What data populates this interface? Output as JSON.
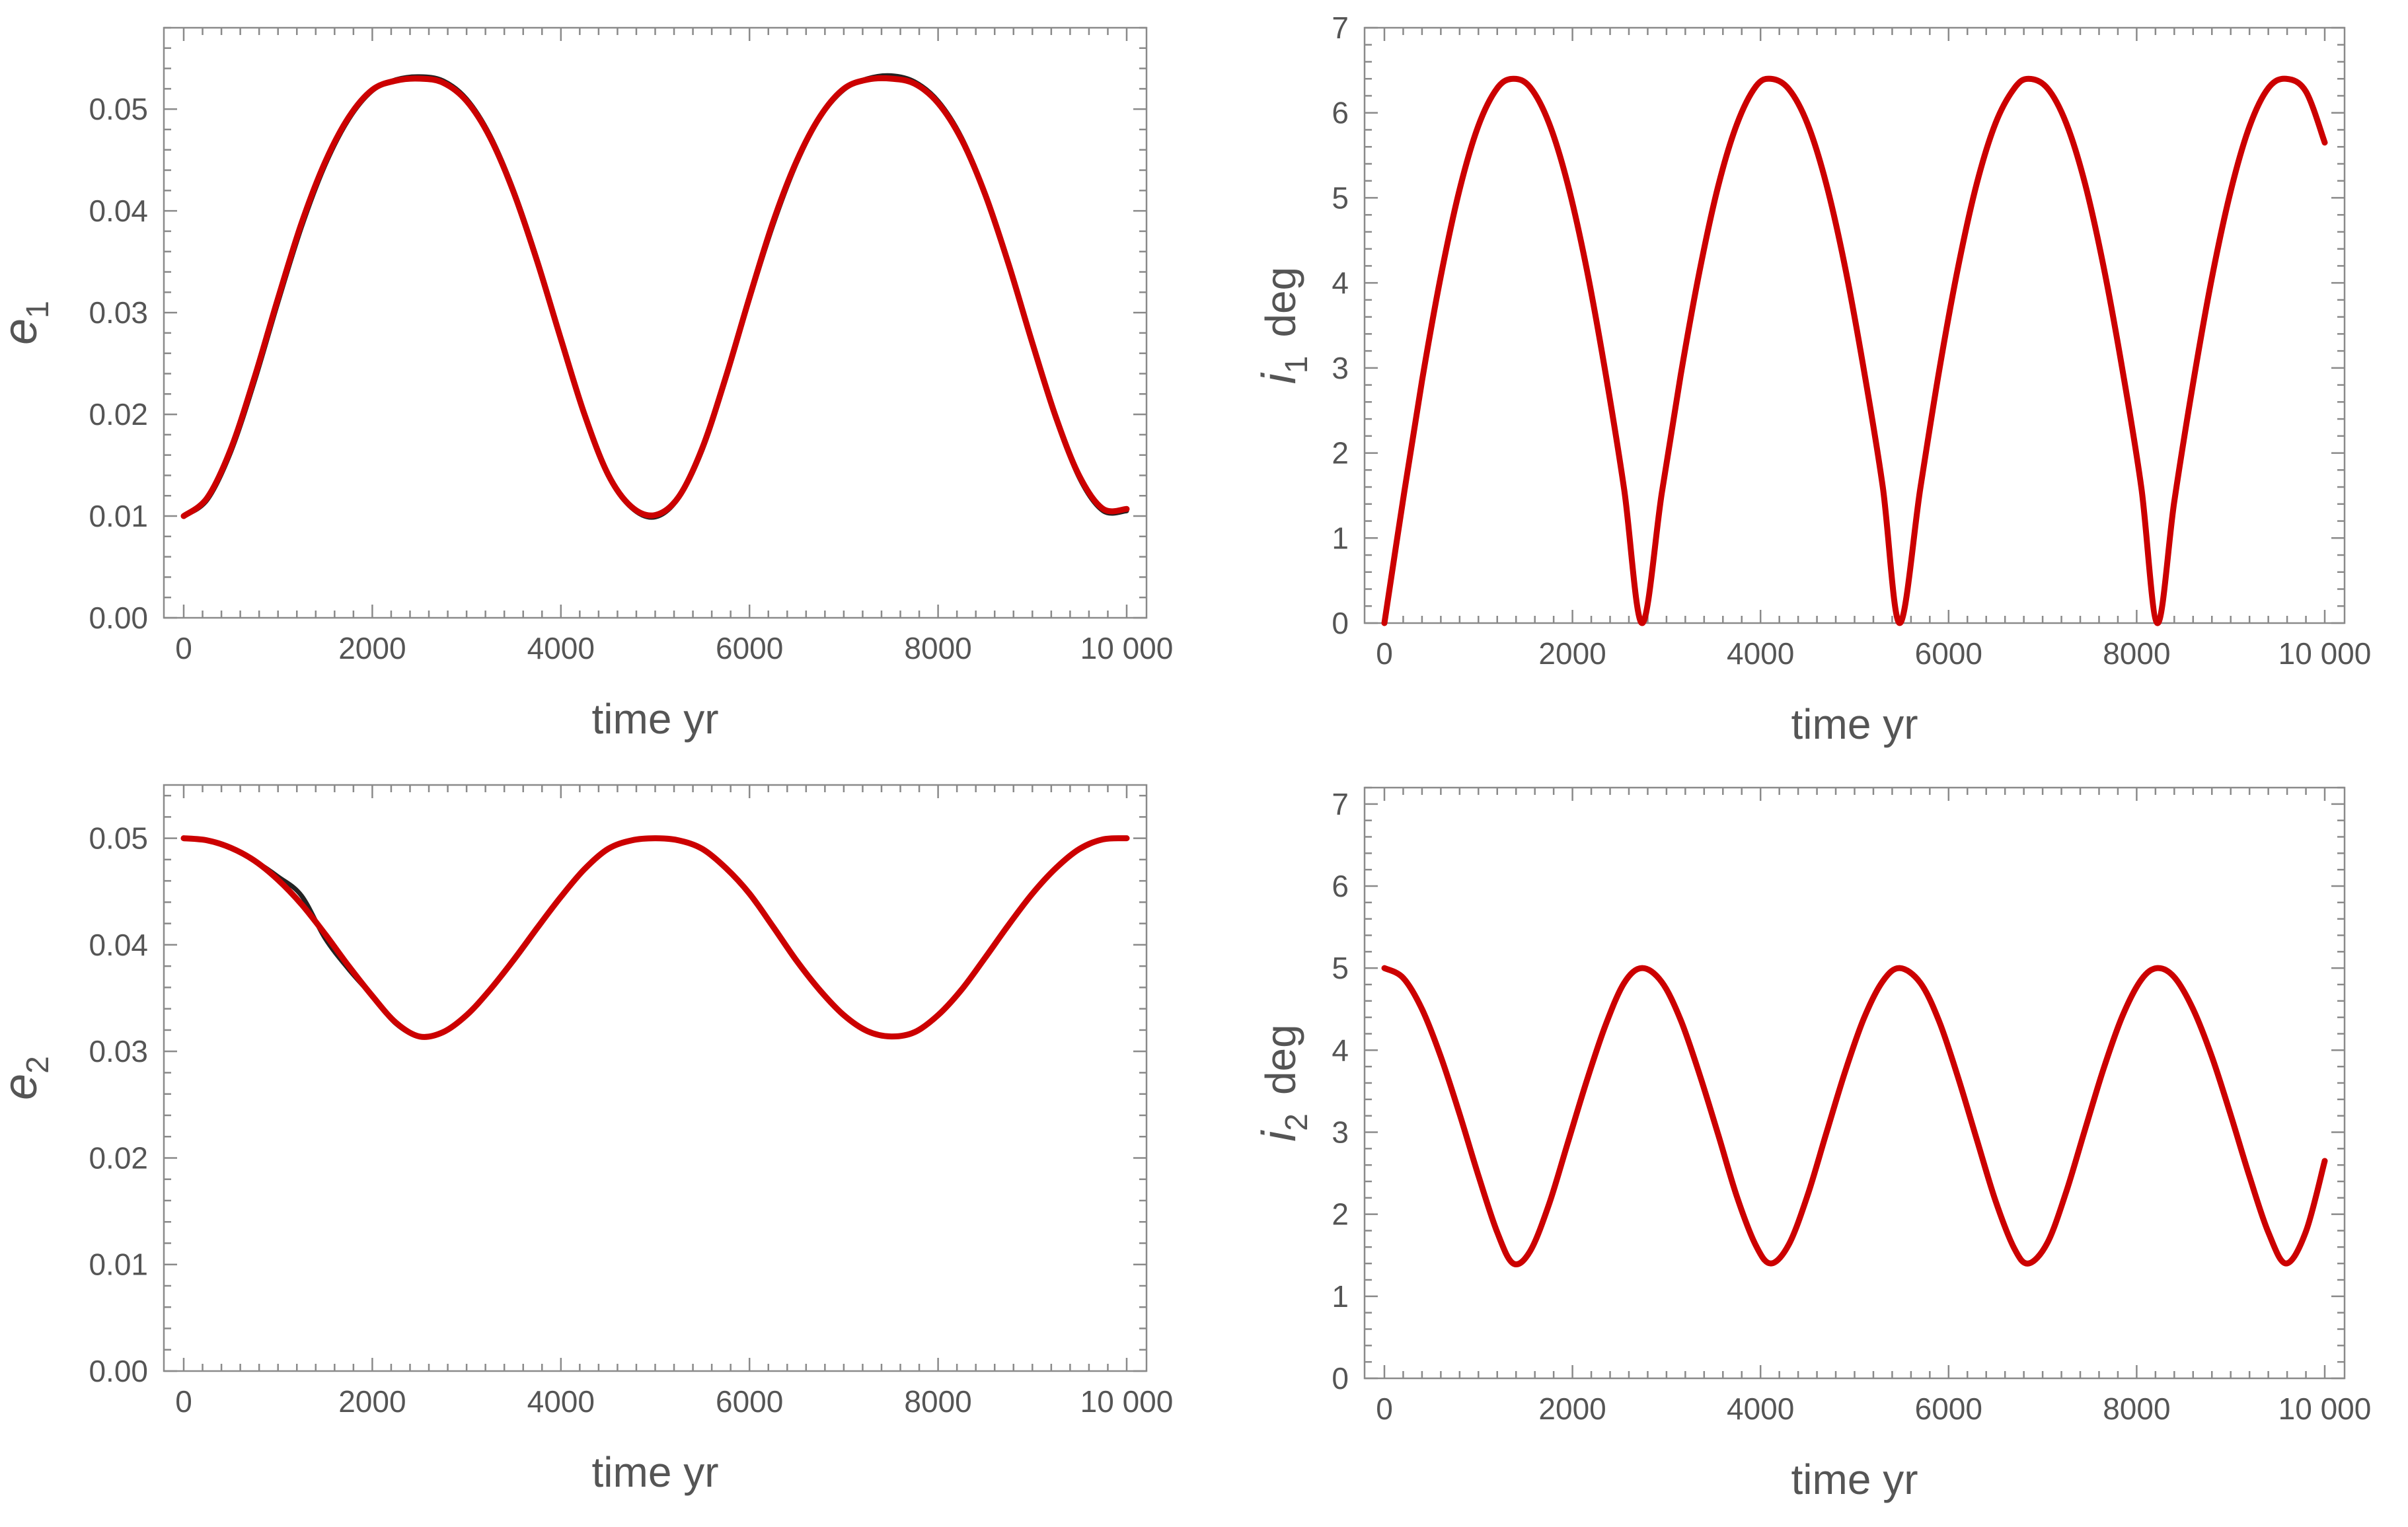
{
  "chart_data": [
    {
      "id": "e1",
      "type": "line",
      "xlabel": "time  yr",
      "ylabel_main": "e",
      "ylabel_sub": "1",
      "ylabel_suffix": "",
      "xlim": [
        0,
        10000
      ],
      "ylim": [
        0,
        0.058
      ],
      "x_ticks": [
        0,
        2000,
        4000,
        6000,
        8000,
        10000
      ],
      "x_tick_labels": [
        "0",
        "2000",
        "4000",
        "6000",
        "8000",
        "10 000"
      ],
      "y_ticks": [
        0,
        0.01,
        0.02,
        0.03,
        0.04,
        0.05
      ],
      "y_tick_labels": [
        "0.00",
        "0.01",
        "0.02",
        "0.03",
        "0.04",
        "0.05"
      ],
      "series": [
        {
          "color": "#222222",
          "width": 7,
          "x": [
            0,
            250,
            500,
            750,
            1000,
            1250,
            1500,
            1750,
            2000,
            2250,
            2500,
            2750,
            3000,
            3250,
            3500,
            3750,
            4000,
            4250,
            4500,
            4750,
            5000,
            5250,
            5500,
            5750,
            6000,
            6250,
            6500,
            6750,
            7000,
            7250,
            7500,
            7750,
            8000,
            8250,
            8500,
            8750,
            9000,
            9250,
            9500,
            9750,
            10000
          ],
          "y": [
            0.01,
            0.0116,
            0.0163,
            0.0232,
            0.031,
            0.0384,
            0.0445,
            0.049,
            0.0518,
            0.0529,
            0.0532,
            0.0528,
            0.051,
            0.0474,
            0.042,
            0.0352,
            0.0275,
            0.0201,
            0.014,
            0.0108,
            0.0099,
            0.0118,
            0.0165,
            0.0235,
            0.0313,
            0.0386,
            0.0447,
            0.0492,
            0.0519,
            0.053,
            0.0533,
            0.0527,
            0.0508,
            0.0472,
            0.0417,
            0.0348,
            0.0271,
            0.0197,
            0.0137,
            0.0105,
            0.0105
          ]
        },
        {
          "color": "#cc0000",
          "width": 9,
          "x": [
            0,
            250,
            500,
            750,
            1000,
            1250,
            1500,
            1750,
            2000,
            2250,
            2500,
            2750,
            3000,
            3250,
            3500,
            3750,
            4000,
            4250,
            4500,
            4750,
            5000,
            5250,
            5500,
            5750,
            6000,
            6250,
            6500,
            6750,
            7000,
            7250,
            7500,
            7750,
            8000,
            8250,
            8500,
            8750,
            9000,
            9250,
            9500,
            9750,
            10000
          ],
          "y": [
            0.01,
            0.0118,
            0.0166,
            0.0236,
            0.0314,
            0.0388,
            0.0448,
            0.0492,
            0.0519,
            0.0528,
            0.053,
            0.0526,
            0.0508,
            0.0472,
            0.0418,
            0.035,
            0.0274,
            0.02,
            0.0141,
            0.0109,
            0.0101,
            0.0119,
            0.0167,
            0.0237,
            0.0315,
            0.0389,
            0.0449,
            0.0493,
            0.052,
            0.0529,
            0.053,
            0.0525,
            0.0506,
            0.047,
            0.0416,
            0.0347,
            0.027,
            0.0197,
            0.0139,
            0.0107,
            0.0107
          ]
        }
      ]
    },
    {
      "id": "i1",
      "type": "line",
      "xlabel": "time  yr",
      "ylabel_main": "i",
      "ylabel_sub": "1",
      "ylabel_suffix": "deg",
      "xlim": [
        0,
        10000
      ],
      "ylim": [
        0,
        7
      ],
      "x_ticks": [
        0,
        2000,
        4000,
        6000,
        8000,
        10000
      ],
      "x_tick_labels": [
        "0",
        "2000",
        "4000",
        "6000",
        "8000",
        "10 000"
      ],
      "y_ticks": [
        0,
        1,
        2,
        3,
        4,
        5,
        6,
        7
      ],
      "y_tick_labels": [
        "0",
        "1",
        "2",
        "3",
        "4",
        "5",
        "6",
        "7"
      ],
      "series": [
        {
          "color": "#cc0000",
          "width": 9,
          "x": [
            0,
            200,
            400,
            600,
            800,
            1000,
            1200,
            1370,
            1550,
            1750,
            1950,
            2150,
            2350,
            2550,
            2740,
            2950,
            3150,
            3350,
            3550,
            3750,
            3950,
            4110,
            4300,
            4500,
            4700,
            4900,
            5100,
            5300,
            5480,
            5700,
            5900,
            6100,
            6300,
            6500,
            6700,
            6850,
            7050,
            7250,
            7450,
            7650,
            7850,
            8050,
            8220,
            8400,
            8600,
            8800,
            9000,
            9200,
            9400,
            9590,
            9800,
            10000
          ],
          "y": [
            0,
            1.46,
            2.85,
            4.08,
            5.1,
            5.85,
            6.29,
            6.4,
            6.3,
            5.88,
            5.16,
            4.17,
            2.95,
            1.57,
            0,
            1.53,
            2.91,
            4.13,
            5.14,
            5.87,
            6.31,
            6.4,
            6.28,
            5.87,
            5.16,
            4.18,
            2.97,
            1.6,
            0,
            1.59,
            2.97,
            4.18,
            5.17,
            5.88,
            6.29,
            6.4,
            6.29,
            5.88,
            5.17,
            4.18,
            2.97,
            1.59,
            0,
            1.43,
            2.82,
            4.06,
            5.08,
            5.84,
            6.29,
            6.4,
            6.25,
            5.65
          ]
        }
      ]
    },
    {
      "id": "e2",
      "type": "line",
      "xlabel": "time  yr",
      "ylabel_main": "e",
      "ylabel_sub": "2",
      "ylabel_suffix": "",
      "xlim": [
        0,
        10000
      ],
      "ylim": [
        0,
        0.055
      ],
      "x_ticks": [
        0,
        2000,
        4000,
        6000,
        8000,
        10000
      ],
      "x_tick_labels": [
        "0",
        "2000",
        "4000",
        "6000",
        "8000",
        "10 000"
      ],
      "y_ticks": [
        0,
        0.01,
        0.02,
        0.03,
        0.04,
        0.05
      ],
      "y_tick_labels": [
        "0.00",
        "0.01",
        "0.02",
        "0.03",
        "0.04",
        "0.05"
      ],
      "series": [
        {
          "color": "#222222",
          "width": 7,
          "x": [
            0,
            250,
            500,
            750,
            1000,
            1250,
            1500,
            1750,
            2000,
            2250,
            2500,
            2750,
            3000,
            3250,
            3500,
            3750,
            4000,
            4250,
            4500,
            4750,
            5000,
            5250,
            5500,
            5750,
            6000,
            6250,
            6500,
            6750,
            7000,
            7250,
            7500,
            7750,
            8000,
            8250,
            8500,
            8750,
            9000,
            9250,
            9500,
            9750,
            10000
          ],
          "y": [
            0.05,
            0.0498,
            0.0491,
            0.0479,
            0.0464,
            0.0446,
            0.0406,
            0.0377,
            0.0352,
            0.0326,
            0.0314,
            0.0318,
            0.0334,
            0.0358,
            0.0385,
            0.0415,
            0.0445,
            0.0471,
            0.049,
            0.0498,
            0.05,
            0.0498,
            0.049,
            0.0472,
            0.0448,
            0.0417,
            0.0385,
            0.0357,
            0.0334,
            0.0319,
            0.0314,
            0.0318,
            0.0334,
            0.0358,
            0.0388,
            0.0419,
            0.0448,
            0.0472,
            0.049,
            0.0499,
            0.05
          ]
        },
        {
          "color": "#cc0000",
          "width": 9,
          "x": [
            0,
            250,
            500,
            750,
            1000,
            1250,
            1500,
            1750,
            2000,
            2250,
            2500,
            2750,
            3000,
            3250,
            3500,
            3750,
            4000,
            4250,
            4500,
            4750,
            5000,
            5250,
            5500,
            5750,
            6000,
            6250,
            6500,
            6750,
            7000,
            7250,
            7500,
            7750,
            8000,
            8250,
            8500,
            8750,
            9000,
            9250,
            9500,
            9750,
            10000
          ],
          "y": [
            0.05,
            0.0498,
            0.0491,
            0.0479,
            0.0461,
            0.0438,
            0.041,
            0.038,
            0.0352,
            0.0327,
            0.0314,
            0.0318,
            0.0334,
            0.0358,
            0.0386,
            0.0416,
            0.0445,
            0.0471,
            0.049,
            0.0498,
            0.05,
            0.0498,
            0.049,
            0.0472,
            0.0448,
            0.0417,
            0.0385,
            0.0357,
            0.0334,
            0.0319,
            0.0314,
            0.0318,
            0.0334,
            0.0358,
            0.0388,
            0.0419,
            0.0448,
            0.0472,
            0.049,
            0.0499,
            0.05
          ]
        }
      ]
    },
    {
      "id": "i2",
      "type": "line",
      "xlabel": "time  yr",
      "ylabel_main": "i",
      "ylabel_sub": "2",
      "ylabel_suffix": "deg",
      "xlim": [
        0,
        10000
      ],
      "ylim": [
        0,
        7.2
      ],
      "x_ticks": [
        0,
        2000,
        4000,
        6000,
        8000,
        10000
      ],
      "x_tick_labels": [
        "0",
        "2000",
        "4000",
        "6000",
        "8000",
        "10 000"
      ],
      "y_ticks": [
        0,
        1,
        2,
        3,
        4,
        5,
        6,
        7
      ],
      "y_tick_labels": [
        "0",
        "1",
        "2",
        "3",
        "4",
        "5",
        "6",
        "7"
      ],
      "series": [
        {
          "color": "#cc0000",
          "width": 9,
          "x": [
            0,
            200,
            400,
            600,
            800,
            1000,
            1200,
            1370,
            1550,
            1750,
            1950,
            2150,
            2350,
            2550,
            2740,
            2950,
            3150,
            3350,
            3550,
            3750,
            3950,
            4110,
            4300,
            4500,
            4700,
            4900,
            5100,
            5300,
            5480,
            5700,
            5900,
            6100,
            6300,
            6500,
            6700,
            6850,
            7050,
            7250,
            7450,
            7650,
            7850,
            8050,
            8220,
            8400,
            8600,
            8800,
            9000,
            9200,
            9400,
            9590,
            9800,
            10000
          ],
          "y": [
            5.0,
            4.88,
            4.5,
            3.92,
            3.22,
            2.47,
            1.78,
            1.4,
            1.55,
            2.12,
            2.87,
            3.62,
            4.3,
            4.82,
            5.0,
            4.83,
            4.37,
            3.71,
            2.97,
            2.21,
            1.62,
            1.4,
            1.63,
            2.23,
            2.99,
            3.74,
            4.39,
            4.84,
            5.0,
            4.82,
            4.35,
            3.67,
            2.91,
            2.16,
            1.58,
            1.4,
            1.65,
            2.27,
            3.03,
            3.78,
            4.42,
            4.86,
            5.0,
            4.89,
            4.5,
            3.92,
            3.21,
            2.46,
            1.78,
            1.4,
            1.79,
            2.65
          ]
        }
      ]
    }
  ]
}
